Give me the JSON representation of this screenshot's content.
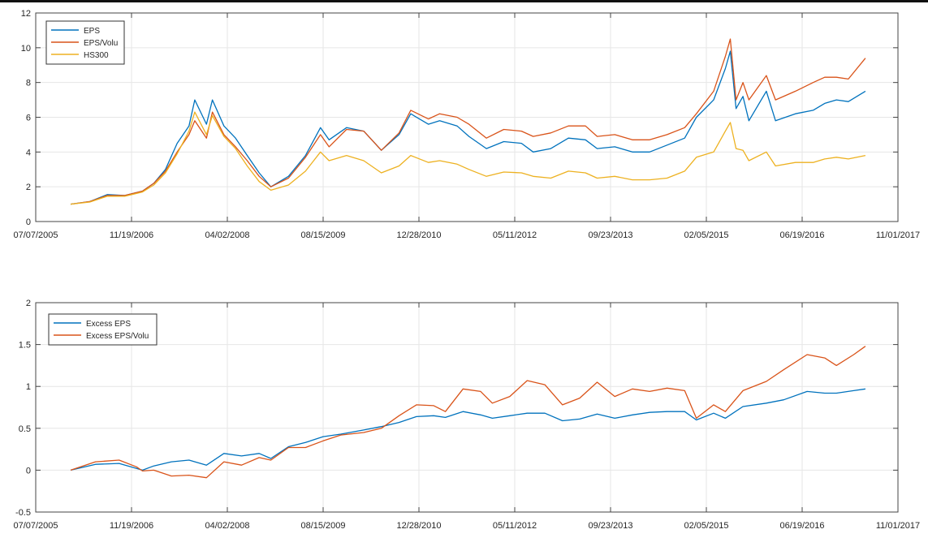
{
  "chart_data": [
    {
      "type": "line",
      "xaxis": {
        "type": "date",
        "range": [
          "07/07/2005",
          "11/01/2017"
        ],
        "tick_labels": [
          "07/07/2005",
          "11/19/2006",
          "04/02/2008",
          "08/15/2009",
          "12/28/2010",
          "05/11/2012",
          "09/23/2013",
          "02/05/2015",
          "06/19/2016",
          "11/01/2017"
        ]
      },
      "ylim": [
        0,
        12
      ],
      "yticks": [
        "0",
        "2",
        "4",
        "6",
        "8",
        "10",
        "12"
      ],
      "grid": true,
      "legend_position": "top-left",
      "x": [
        "2006-01-05",
        "2006-04-15",
        "2006-07-15",
        "2006-10-15",
        "2007-01-15",
        "2007-03-15",
        "2007-05-15",
        "2007-07-15",
        "2007-09-15",
        "2007-10-15",
        "2007-12-15",
        "2008-01-15",
        "2008-03-15",
        "2008-05-15",
        "2008-07-15",
        "2008-09-15",
        "2008-11-15",
        "2009-02-15",
        "2009-05-15",
        "2009-08-01",
        "2009-09-15",
        "2009-12-15",
        "2010-03-15",
        "2010-06-15",
        "2010-09-15",
        "2010-11-15",
        "2011-02-15",
        "2011-04-15",
        "2011-07-15",
        "2011-09-15",
        "2011-12-15",
        "2012-03-15",
        "2012-06-15",
        "2012-08-15",
        "2012-11-15",
        "2013-02-15",
        "2013-05-15",
        "2013-07-15",
        "2013-10-15",
        "2014-01-15",
        "2014-04-15",
        "2014-07-15",
        "2014-10-15",
        "2014-12-15",
        "2015-03-15",
        "2015-05-15",
        "2015-06-10",
        "2015-07-10",
        "2015-08-15",
        "2015-09-15",
        "2015-12-15",
        "2016-02-01",
        "2016-05-15",
        "2016-08-15",
        "2016-10-15",
        "2016-12-15",
        "2017-02-15",
        "2017-05-15"
      ],
      "series": [
        {
          "name": "EPS",
          "color": "#0072BD",
          "values": [
            1.0,
            1.15,
            1.55,
            1.5,
            1.75,
            2.2,
            3.0,
            4.5,
            5.5,
            7.0,
            5.6,
            7.0,
            5.5,
            4.8,
            3.8,
            2.8,
            2.0,
            2.6,
            3.8,
            5.4,
            4.7,
            5.4,
            5.2,
            4.1,
            5.0,
            6.2,
            5.6,
            5.8,
            5.5,
            4.9,
            4.2,
            4.6,
            4.5,
            4.0,
            4.2,
            4.8,
            4.7,
            4.2,
            4.3,
            4.0,
            4.0,
            4.4,
            4.8,
            6.0,
            7.0,
            8.8,
            9.8,
            6.5,
            7.2,
            5.8,
            7.5,
            5.8,
            6.2,
            6.4,
            6.8,
            7.0,
            6.9,
            7.5
          ]
        },
        {
          "name": "EPS/Volu",
          "color": "#D95319",
          "values": [
            1.0,
            1.15,
            1.5,
            1.5,
            1.75,
            2.2,
            2.9,
            4.0,
            5.0,
            5.8,
            4.8,
            6.3,
            5.0,
            4.3,
            3.5,
            2.6,
            2.0,
            2.5,
            3.7,
            5.0,
            4.3,
            5.3,
            5.2,
            4.1,
            5.1,
            6.4,
            5.9,
            6.2,
            6.0,
            5.6,
            4.8,
            5.3,
            5.2,
            4.9,
            5.1,
            5.5,
            5.5,
            4.9,
            5.0,
            4.7,
            4.7,
            5.0,
            5.4,
            6.2,
            7.5,
            9.5,
            10.5,
            7.0,
            8.0,
            7.0,
            8.4,
            7.0,
            7.5,
            8.0,
            8.3,
            8.3,
            8.2,
            9.4
          ]
        },
        {
          "name": "HS300",
          "color": "#EDB120",
          "values": [
            1.0,
            1.12,
            1.45,
            1.45,
            1.7,
            2.1,
            2.8,
            3.9,
            5.2,
            6.3,
            5.0,
            6.1,
            4.9,
            4.2,
            3.2,
            2.3,
            1.8,
            2.1,
            2.9,
            4.0,
            3.5,
            3.8,
            3.5,
            2.8,
            3.2,
            3.8,
            3.4,
            3.5,
            3.3,
            3.0,
            2.6,
            2.85,
            2.8,
            2.6,
            2.5,
            2.9,
            2.8,
            2.5,
            2.6,
            2.4,
            2.4,
            2.5,
            2.9,
            3.7,
            4.0,
            5.2,
            5.7,
            4.2,
            4.1,
            3.5,
            4.0,
            3.2,
            3.4,
            3.4,
            3.6,
            3.7,
            3.6,
            3.8
          ]
        }
      ]
    },
    {
      "type": "line",
      "xaxis": {
        "type": "date",
        "range": [
          "07/07/2005",
          "11/01/2017"
        ],
        "tick_labels": [
          "07/07/2005",
          "11/19/2006",
          "04/02/2008",
          "08/15/2009",
          "12/28/2010",
          "05/11/2012",
          "09/23/2013",
          "02/05/2015",
          "06/19/2016",
          "11/01/2017"
        ]
      },
      "ylim": [
        -0.5,
        2
      ],
      "yticks": [
        "-0.5",
        "0",
        "0.5",
        "1",
        "1.5",
        "2"
      ],
      "grid": true,
      "legend_position": "top-left",
      "x": [
        "2006-01-05",
        "2006-05-15",
        "2006-09-15",
        "2006-12-15",
        "2007-01-15",
        "2007-03-15",
        "2007-06-15",
        "2007-09-15",
        "2007-12-15",
        "2008-03-15",
        "2008-06-15",
        "2008-09-15",
        "2008-11-15",
        "2009-02-15",
        "2009-05-15",
        "2009-08-15",
        "2009-11-15",
        "2010-03-15",
        "2010-06-15",
        "2010-09-15",
        "2010-12-15",
        "2011-03-15",
        "2011-05-15",
        "2011-08-15",
        "2011-11-15",
        "2012-01-15",
        "2012-04-15",
        "2012-07-15",
        "2012-10-15",
        "2013-01-15",
        "2013-04-15",
        "2013-07-15",
        "2013-10-15",
        "2014-01-15",
        "2014-04-15",
        "2014-07-15",
        "2014-10-15",
        "2014-12-15",
        "2015-03-15",
        "2015-05-15",
        "2015-08-15",
        "2015-12-15",
        "2016-03-15",
        "2016-07-15",
        "2016-10-15",
        "2016-12-15",
        "2017-03-15",
        "2017-05-15"
      ],
      "series": [
        {
          "name": "Excess EPS",
          "color": "#0072BD",
          "values": [
            0,
            0.07,
            0.08,
            0.02,
            0.0,
            0.05,
            0.1,
            0.12,
            0.06,
            0.2,
            0.17,
            0.2,
            0.14,
            0.28,
            0.33,
            0.4,
            0.43,
            0.48,
            0.52,
            0.57,
            0.64,
            0.65,
            0.63,
            0.7,
            0.66,
            0.62,
            0.65,
            0.68,
            0.68,
            0.59,
            0.61,
            0.67,
            0.62,
            0.66,
            0.69,
            0.7,
            0.7,
            0.6,
            0.68,
            0.62,
            0.76,
            0.8,
            0.84,
            0.94,
            0.92,
            0.92,
            0.95,
            0.97
          ]
        },
        {
          "name": "Excess EPS/Volu",
          "color": "#D95319",
          "values": [
            0,
            0.1,
            0.12,
            0.04,
            -0.01,
            0.0,
            -0.07,
            -0.06,
            -0.09,
            0.1,
            0.06,
            0.15,
            0.12,
            0.27,
            0.27,
            0.35,
            0.42,
            0.45,
            0.5,
            0.65,
            0.78,
            0.77,
            0.7,
            0.97,
            0.94,
            0.8,
            0.88,
            1.07,
            1.02,
            0.78,
            0.86,
            1.05,
            0.88,
            0.97,
            0.94,
            0.98,
            0.95,
            0.62,
            0.78,
            0.7,
            0.95,
            1.06,
            1.2,
            1.38,
            1.34,
            1.25,
            1.38,
            1.48
          ]
        }
      ]
    }
  ]
}
